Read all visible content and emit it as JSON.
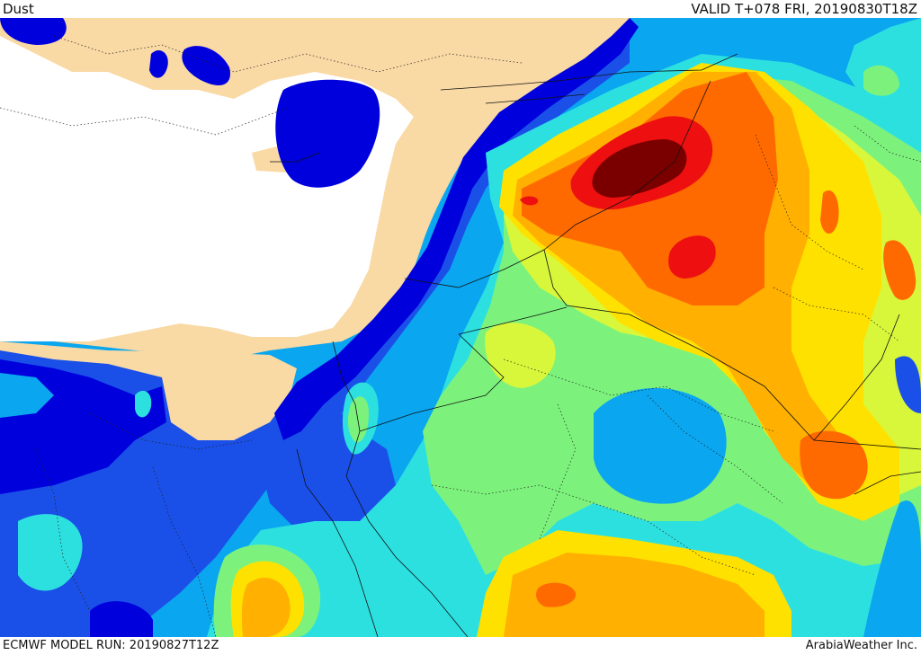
{
  "header": {
    "field_label": "Dust",
    "valid_time": "VALID T+078 FRI, 20190830T18Z"
  },
  "footer": {
    "model_run": "ECMWF MODEL RUN: 20190827T12Z",
    "credit": "ArabiaWeather Inc."
  },
  "colors": {
    "land": "#f9d9a4",
    "sea": "#ffffff",
    "level1_blue_dark": "#0000dd",
    "level2_blue": "#1a50e8",
    "level3_lightblue": "#0aa6f0",
    "level4_cyan": "#2de0e0",
    "level5_green": "#7cf27c",
    "level6_yellowgreen": "#d8f73a",
    "level7_yellow": "#ffe100",
    "level8_orange": "#ffb000",
    "level9_darkorange": "#ff6a00",
    "level10_red": "#ee1010",
    "level11_maroon": "#7a0000"
  }
}
